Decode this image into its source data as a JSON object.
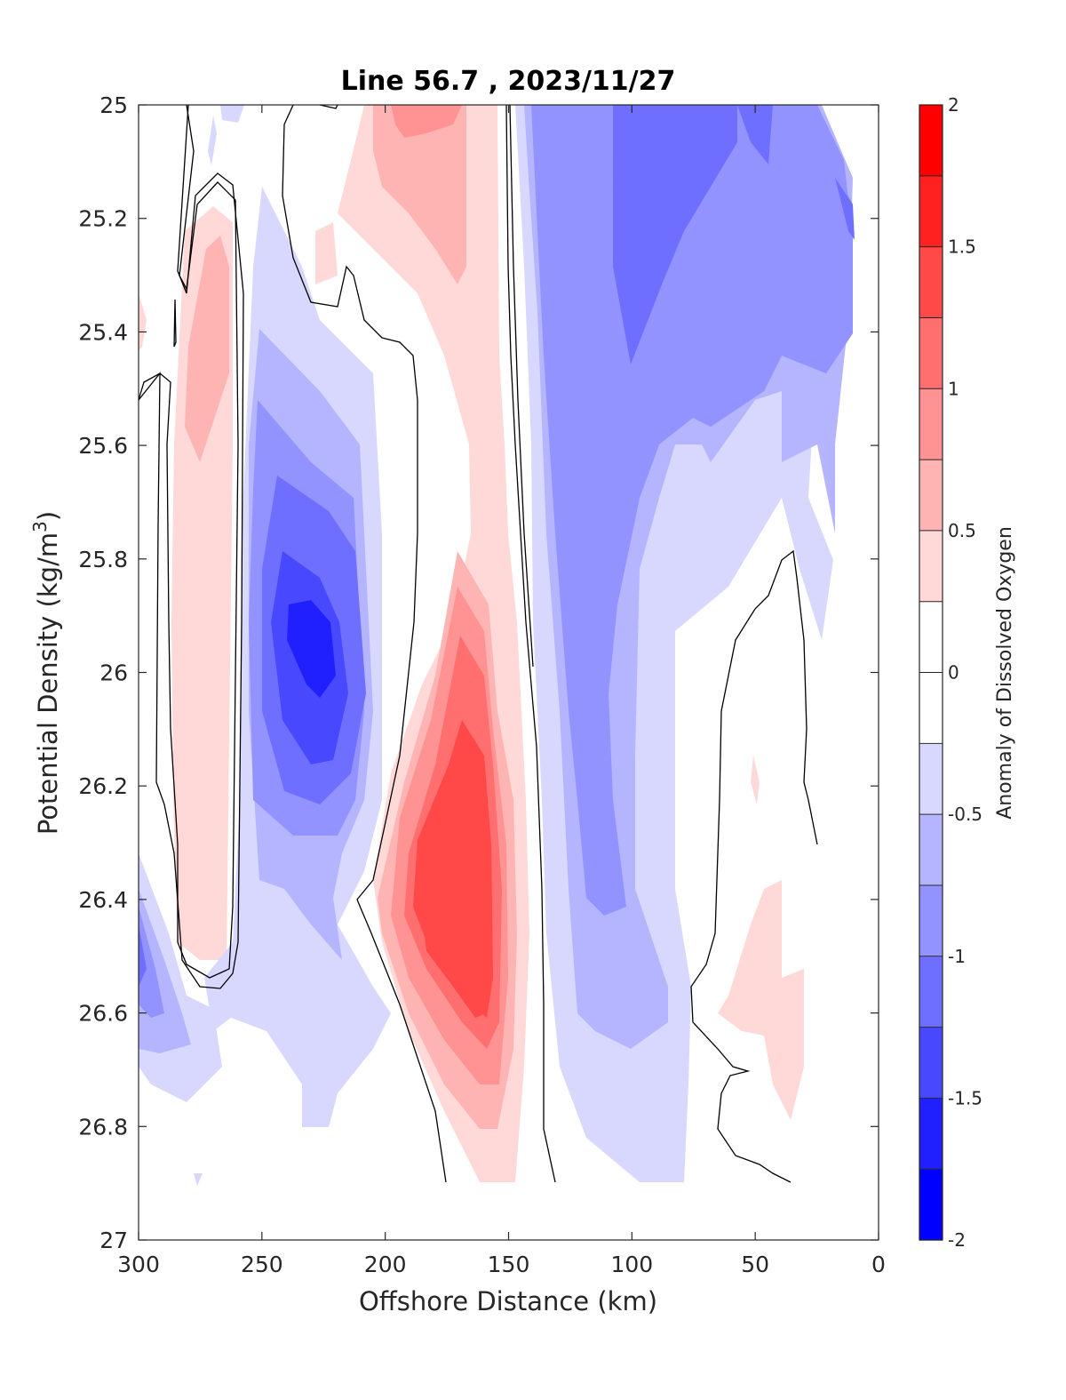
{
  "chart_data": {
    "type": "heatmap",
    "title": "Line 56.7 , 2023/11/27",
    "xlabel": "Offshore Distance (km)",
    "ylabel": "Potential Density (kg/m3)",
    "ylabel_main": "Potential Density (kg/m",
    "ylabel_sup": "3",
    "ylabel_close": ")",
    "xlim": [
      300,
      0
    ],
    "ylim": [
      25,
      27
    ],
    "x_reversed": true,
    "y_reversed": true,
    "xticks": [
      300,
      250,
      200,
      150,
      100,
      50,
      0
    ],
    "yticks": [
      25,
      25.2,
      25.4,
      25.6,
      25.8,
      26,
      26.2,
      26.4,
      26.6,
      26.8,
      27
    ],
    "colorbar": {
      "label": "Anomaly of Dissolved Oxygen",
      "range": [
        -2,
        2
      ],
      "ticks": [
        -2,
        -1.5,
        -1,
        -0.5,
        0,
        0.5,
        1,
        1.5,
        2
      ],
      "levels": [
        {
          "min": -2.0,
          "max": -1.75,
          "color": "#0000ff"
        },
        {
          "min": -1.75,
          "max": -1.5,
          "color": "#2020ff"
        },
        {
          "min": -1.5,
          "max": -1.25,
          "color": "#4848ff"
        },
        {
          "min": -1.25,
          "max": -1.0,
          "color": "#6f6fff"
        },
        {
          "min": -1.0,
          "max": -0.75,
          "color": "#9393ff"
        },
        {
          "min": -0.75,
          "max": -0.5,
          "color": "#b4b4ff"
        },
        {
          "min": -0.5,
          "max": -0.25,
          "color": "#d8d8ff"
        },
        {
          "min": -0.25,
          "max": 0.0,
          "color": "#ffffff"
        },
        {
          "min": 0.0,
          "max": 0.25,
          "color": "#ffffff"
        },
        {
          "min": 0.25,
          "max": 0.5,
          "color": "#ffd8d8"
        },
        {
          "min": 0.5,
          "max": 0.75,
          "color": "#ffb4b4"
        },
        {
          "min": 0.75,
          "max": 1.0,
          "color": "#ff9393"
        },
        {
          "min": 1.0,
          "max": 1.25,
          "color": "#ff6f6f"
        },
        {
          "min": 1.25,
          "max": 1.5,
          "color": "#ff4848"
        },
        {
          "min": 1.5,
          "max": 1.75,
          "color": "#ff2020"
        },
        {
          "min": 1.75,
          "max": 2.0,
          "color": "#ff0000"
        }
      ]
    },
    "features": [
      {
        "kind": "positive anomaly",
        "x_center_km": 270,
        "density_range": [
          25.2,
          26.5
        ],
        "peak": 0.75
      },
      {
        "kind": "negative anomaly",
        "x_center_km": 230,
        "density_range": [
          25.6,
          26.6
        ],
        "peak": -1.75
      },
      {
        "kind": "positive anomaly",
        "x_center_km": 170,
        "density_range": [
          25.0,
          26.9
        ],
        "peak": 1.5
      },
      {
        "kind": "negative anomaly",
        "x_center_km": 90,
        "density_range": [
          25.0,
          26.9
        ],
        "peak": -1.25
      },
      {
        "kind": "positive anomaly",
        "x_center_km": 45,
        "density_range": [
          26.4,
          26.8
        ],
        "peak": 0.5
      }
    ],
    "contour_levels": [
      0
    ]
  }
}
